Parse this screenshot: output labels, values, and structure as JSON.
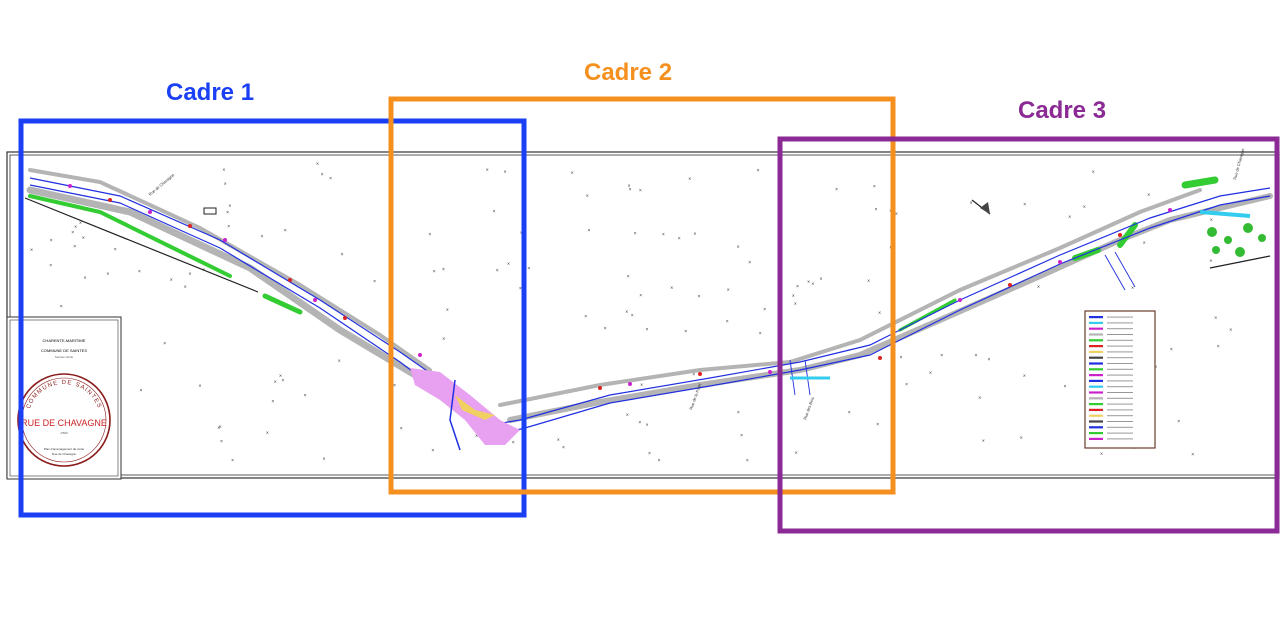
{
  "frames": [
    {
      "label": "Cadre 1",
      "color": "#1a3ff5"
    },
    {
      "label": "Cadre 2",
      "color": "#f5901e"
    },
    {
      "label": "Cadre 3",
      "color": "#8b2a94"
    }
  ],
  "title_block": {
    "line1": "CHARENTE-MARITIME",
    "line2": "COMMUNE DE SAINTES",
    "line3": "Service Voirie",
    "stamp_ring_text": "COMMUNE DE SAINTES",
    "street": "RUE DE CHAVAGNE",
    "scale": "1/500",
    "footer1": "Plan d'aménagement de voirie",
    "footer2": "Rue de Chavagne"
  },
  "street_labels": [
    "Rue de Chavagne",
    "Rue de la Forêt",
    "Rue des Bois",
    "Rue de Chavagne"
  ],
  "colors": {
    "road_blue": "#2030e0",
    "sidewalk": "#b4b4b4",
    "green_space": "#33cc33",
    "pink_zone": "#e8a0f0",
    "yellow_zone": "#f0d060",
    "cyan": "#33ccee",
    "red_marks": "#dd2222",
    "magenta": "#cc22cc"
  },
  "north_arrow_icon": "north-arrow-icon",
  "legend_icon": "legend-panel"
}
